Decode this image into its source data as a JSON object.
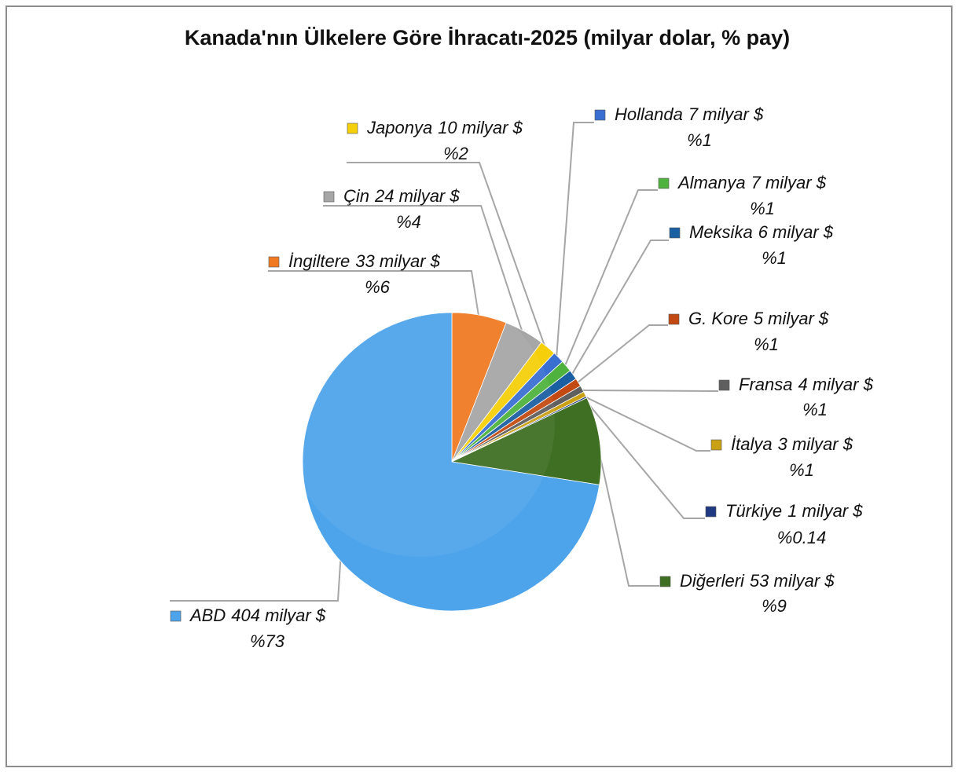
{
  "chart_data": {
    "type": "pie",
    "title": "Kanada'nın Ülkelere Göre İhracatı-2025 (milyar dolar, % pay)",
    "categories": [
      "İngiltere",
      "Çin",
      "Japonya",
      "Hollanda",
      "Almanya",
      "Meksika",
      "G. Kore",
      "Fransa",
      "İtalya",
      "Türkiye",
      "Diğerleri",
      "ABD"
    ],
    "values": [
      33,
      24,
      10,
      7,
      7,
      6,
      5,
      4,
      3,
      1,
      53,
      404
    ],
    "value_labels": [
      "33 milyar $",
      "24 milyar $",
      "10 milyar $",
      "7 milyar $",
      "7 milyar $",
      "6 milyar $",
      "5 milyar $",
      "4 milyar $",
      "3 milyar $",
      "1 milyar $",
      "53 milyar $",
      "404 milyar $"
    ],
    "shares": [
      6,
      4,
      2,
      1,
      1,
      1,
      1,
      1,
      1,
      0.14,
      9,
      73
    ],
    "share_labels": [
      "%6",
      "%4",
      "%2",
      "%1",
      "%1",
      "%1",
      "%1",
      "%1",
      "%1",
      "%0.14",
      "%9",
      "%73"
    ],
    "colors": [
      "#f07a22",
      "#a6a6a6",
      "#f5cf0a",
      "#3a6fd2",
      "#4fb23e",
      "#1b5fa3",
      "#c24a12",
      "#5f5f5f",
      "#caa014",
      "#1f3a82",
      "#3f6f22",
      "#4da4eb"
    ]
  }
}
